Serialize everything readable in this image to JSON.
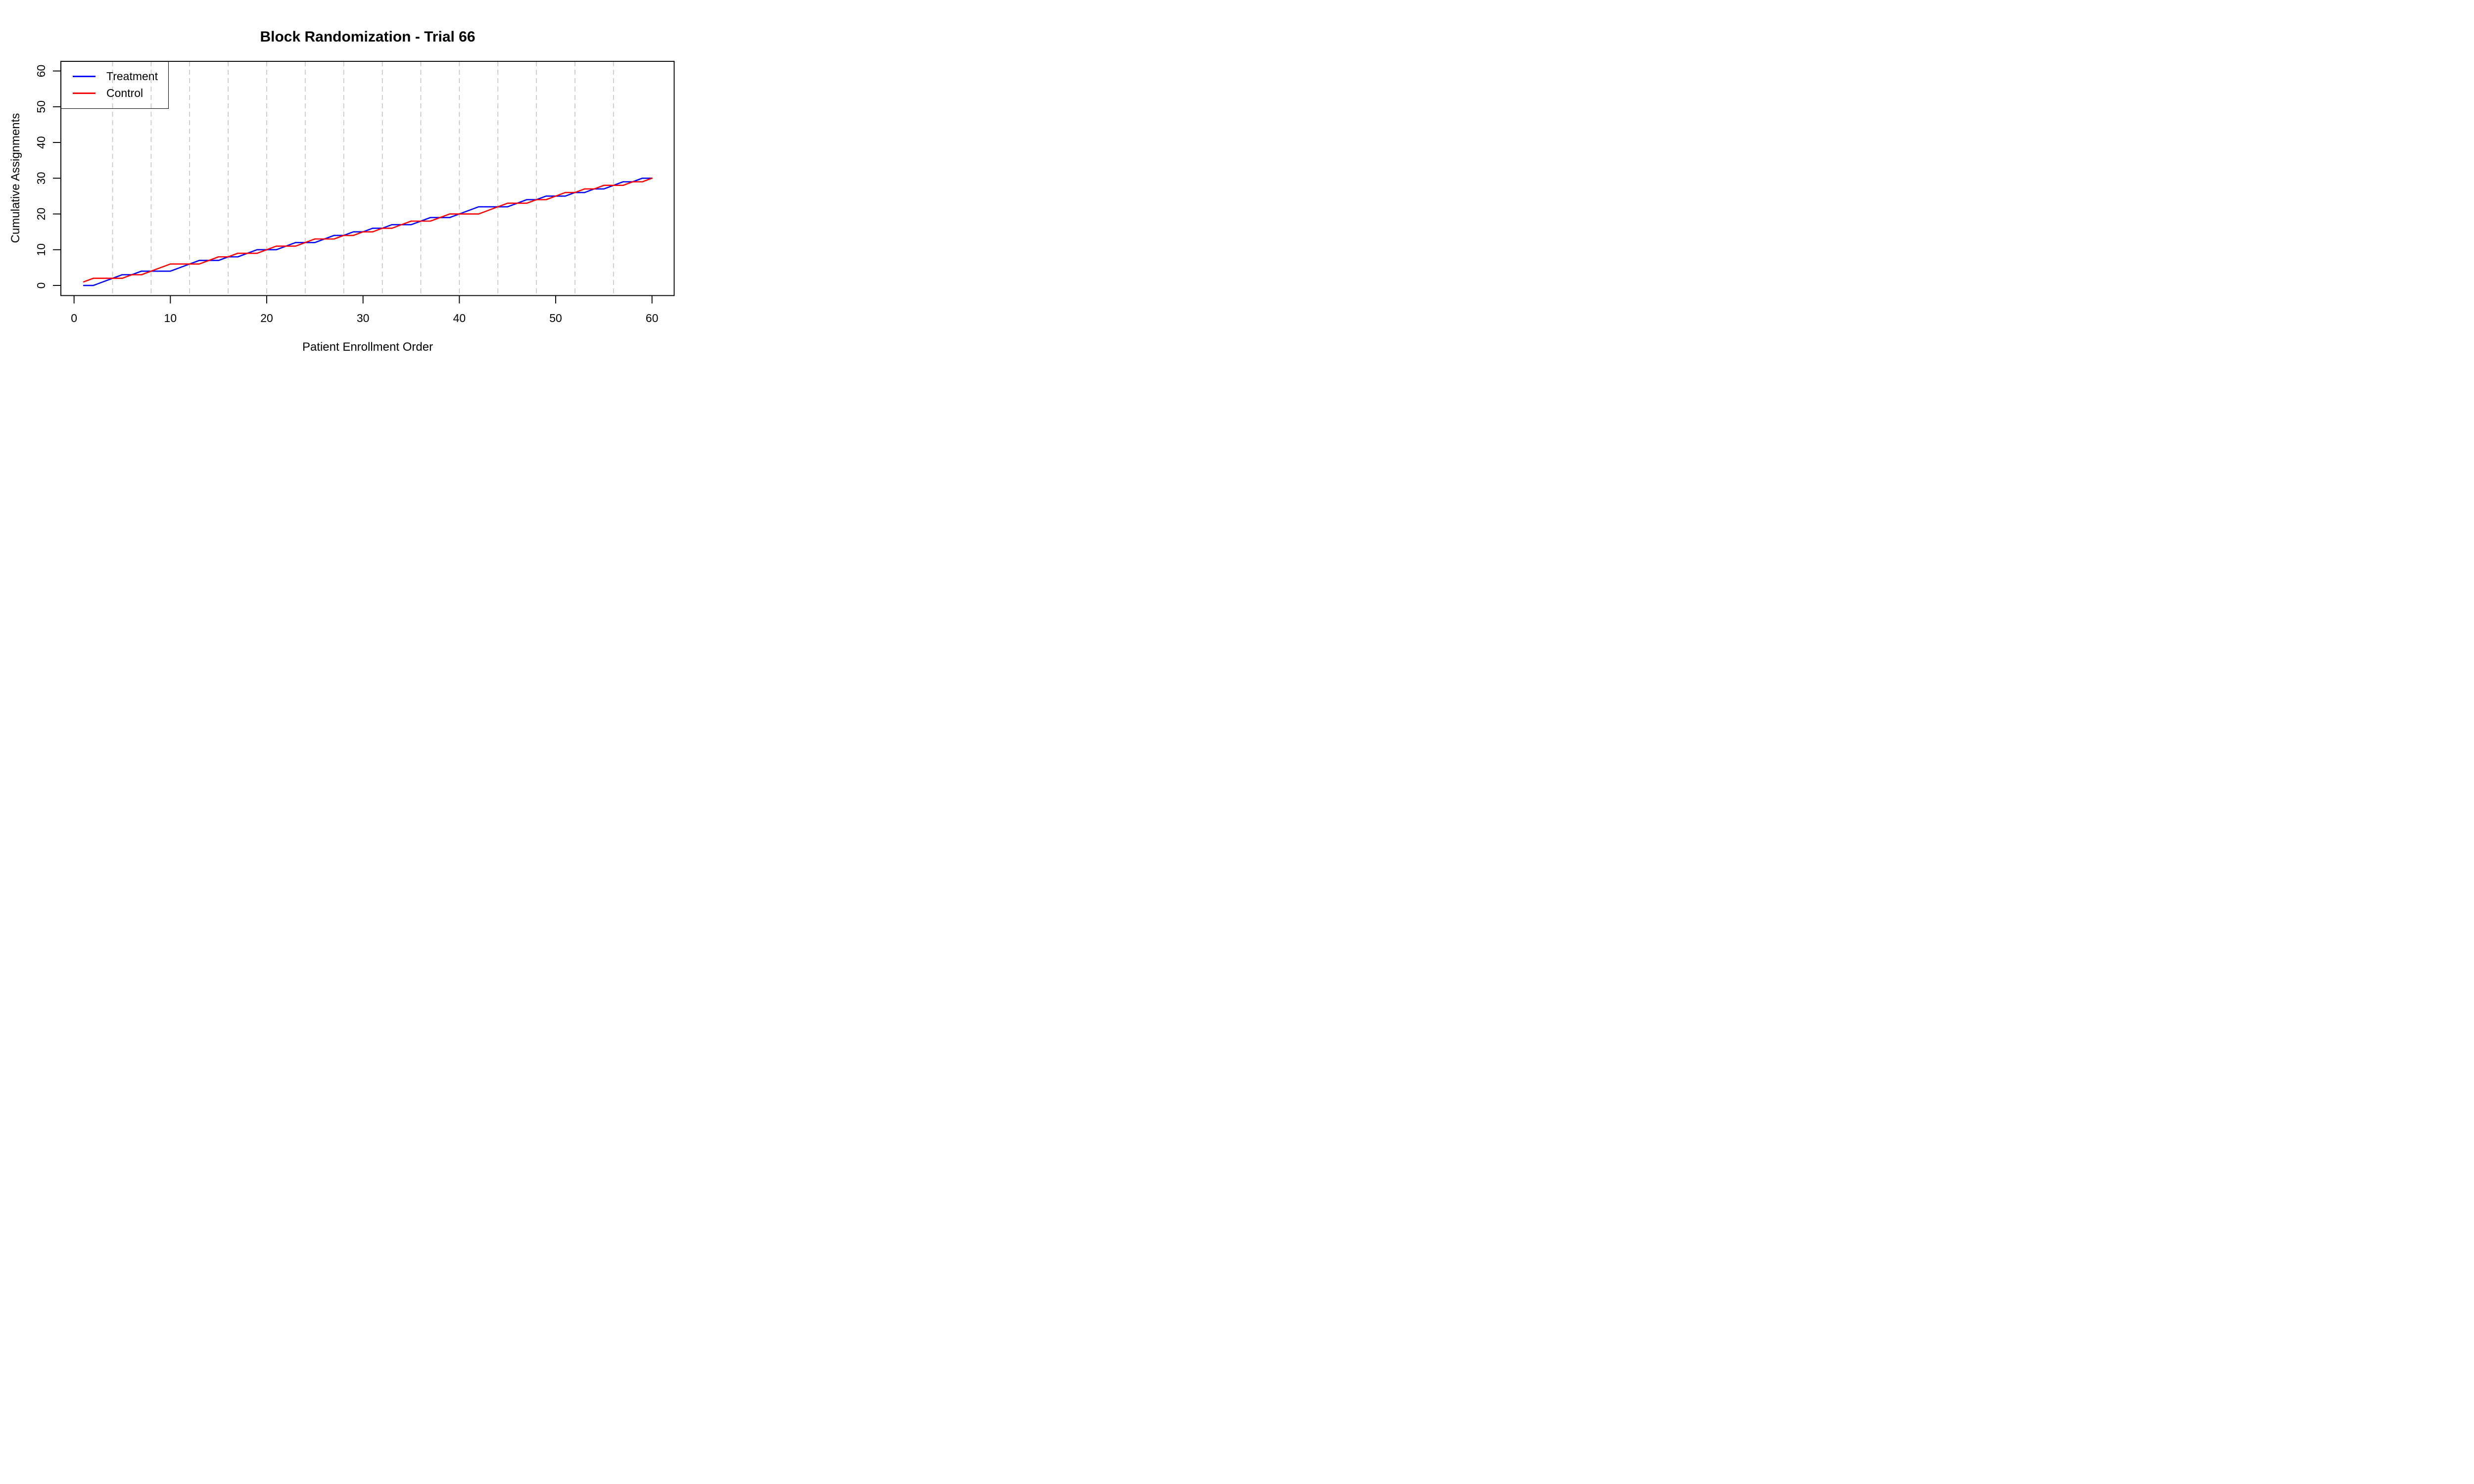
{
  "chart": {
    "title": "Block Randomization - Trial 66",
    "xlabel": "Patient Enrollment Order",
    "ylabel": "Cumulative Assignments"
  },
  "legend": {
    "items": [
      {
        "label": "Treatment",
        "color": "#0000FF"
      },
      {
        "label": "Control",
        "color": "#FF0000"
      }
    ]
  },
  "colors": {
    "treatment": "#0000FF",
    "control": "#FF0000",
    "gridline": "#BFBFBF",
    "axis": "#000000",
    "background": "#FFFFFF"
  },
  "chart_data": {
    "type": "line",
    "title": "Block Randomization - Trial 66",
    "xlabel": "Patient Enrollment Order",
    "ylabel": "Cumulative Assignments",
    "x": [
      1,
      2,
      3,
      4,
      5,
      6,
      7,
      8,
      9,
      10,
      11,
      12,
      13,
      14,
      15,
      16,
      17,
      18,
      19,
      20,
      21,
      22,
      23,
      24,
      25,
      26,
      27,
      28,
      29,
      30,
      31,
      32,
      33,
      34,
      35,
      36,
      37,
      38,
      39,
      40,
      41,
      42,
      43,
      44,
      45,
      46,
      47,
      48,
      49,
      50,
      51,
      52,
      53,
      54,
      55,
      56,
      57,
      58,
      59,
      60
    ],
    "series": [
      {
        "name": "Treatment",
        "color": "#0000FF",
        "values": [
          0,
          0,
          1,
          2,
          3,
          3,
          4,
          4,
          4,
          4,
          5,
          6,
          7,
          7,
          7,
          8,
          8,
          9,
          10,
          10,
          10,
          11,
          12,
          12,
          12,
          13,
          14,
          14,
          15,
          15,
          16,
          16,
          17,
          17,
          17,
          18,
          19,
          19,
          19,
          20,
          21,
          22,
          22,
          22,
          22,
          23,
          24,
          24,
          25,
          25,
          25,
          26,
          26,
          27,
          27,
          28,
          29,
          29,
          30,
          30
        ]
      },
      {
        "name": "Control",
        "color": "#FF0000",
        "values": [
          1,
          2,
          2,
          2,
          2,
          3,
          3,
          4,
          5,
          6,
          6,
          6,
          6,
          7,
          8,
          8,
          9,
          9,
          9,
          10,
          11,
          11,
          11,
          12,
          13,
          13,
          13,
          14,
          14,
          15,
          15,
          16,
          16,
          17,
          18,
          18,
          18,
          19,
          20,
          20,
          20,
          20,
          21,
          22,
          23,
          23,
          23,
          24,
          24,
          25,
          26,
          26,
          27,
          27,
          28,
          28,
          28,
          29,
          29,
          30
        ]
      }
    ],
    "x_ticks": [
      0,
      10,
      20,
      30,
      40,
      50,
      60
    ],
    "y_ticks": [
      0,
      10,
      20,
      30,
      40,
      50,
      60
    ],
    "xlim": [
      -1.37,
      62.3
    ],
    "ylim": [
      -2.83,
      62.7
    ],
    "grid_x": [
      4,
      8,
      12,
      16,
      20,
      24,
      28,
      32,
      36,
      40,
      44,
      48,
      52,
      56
    ],
    "grid_style": "vertical-dashed",
    "legend_position": "top-left",
    "block_size": 4
  }
}
